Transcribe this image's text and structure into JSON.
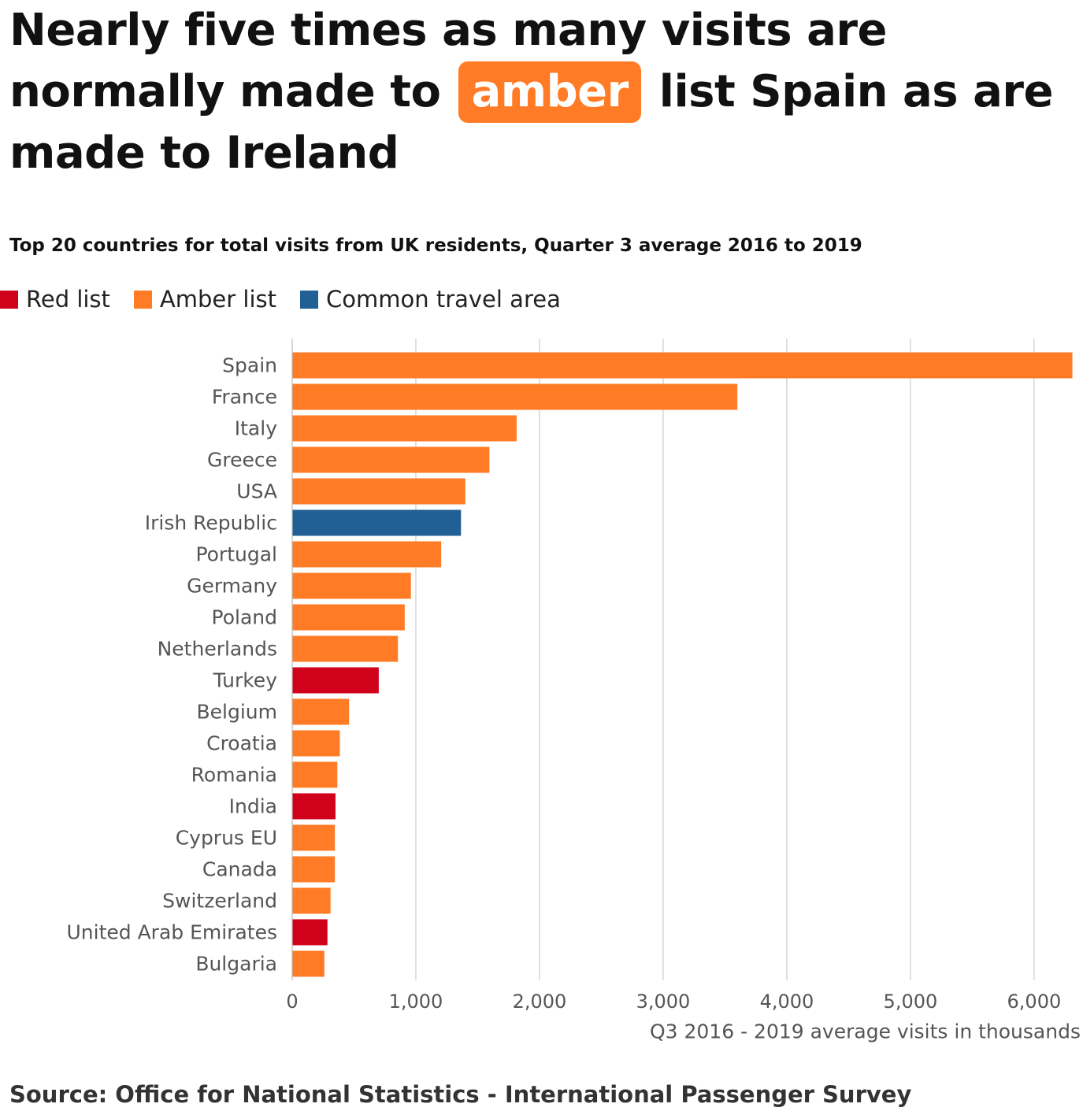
{
  "headline": {
    "before": "Nearly five times as many visits are normally made to",
    "highlight": "amber",
    "after": "list Spain as are made to Ireland"
  },
  "chart_data": {
    "type": "bar",
    "orientation": "horizontal",
    "title": "Top 20 countries for total visits from UK residents, Quarter 3 average 2016 to 2019",
    "xlabel": "Q3 2016 - 2019 average visits in thousands",
    "ylabel": "",
    "xlim": [
      0,
      6300
    ],
    "grid": true,
    "x_ticks": [
      0,
      1000,
      2000,
      3000,
      4000,
      5000,
      6000
    ],
    "x_tick_labels": [
      "0",
      "1,000",
      "2,000",
      "3,000",
      "4,000",
      "5,000",
      "6,000"
    ],
    "legend_placement": "top-left",
    "legend": [
      {
        "name": "Red list",
        "color": "#d0021b"
      },
      {
        "name": "Amber list",
        "color": "#ff7b25"
      },
      {
        "name": "Common travel area",
        "color": "#206095"
      }
    ],
    "categories": [
      "Spain",
      "France",
      "Italy",
      "Greece",
      "USA",
      "Irish Republic",
      "Portugal",
      "Germany",
      "Poland",
      "Netherlands",
      "Turkey",
      "Belgium",
      "Croatia",
      "Romania",
      "India",
      "Cyprus EU",
      "Canada",
      "Switzerland",
      "United Arab Emirates",
      "Bulgaria"
    ],
    "values": [
      6310,
      3600,
      1815,
      1595,
      1400,
      1365,
      1205,
      960,
      910,
      855,
      700,
      460,
      385,
      365,
      350,
      345,
      345,
      310,
      285,
      260
    ],
    "groups": [
      "Amber list",
      "Amber list",
      "Amber list",
      "Amber list",
      "Amber list",
      "Common travel area",
      "Amber list",
      "Amber list",
      "Amber list",
      "Amber list",
      "Red list",
      "Amber list",
      "Amber list",
      "Amber list",
      "Red list",
      "Amber list",
      "Amber list",
      "Amber list",
      "Red list",
      "Amber list"
    ]
  },
  "source": "Source: Office for National Statistics - International Passenger Survey"
}
